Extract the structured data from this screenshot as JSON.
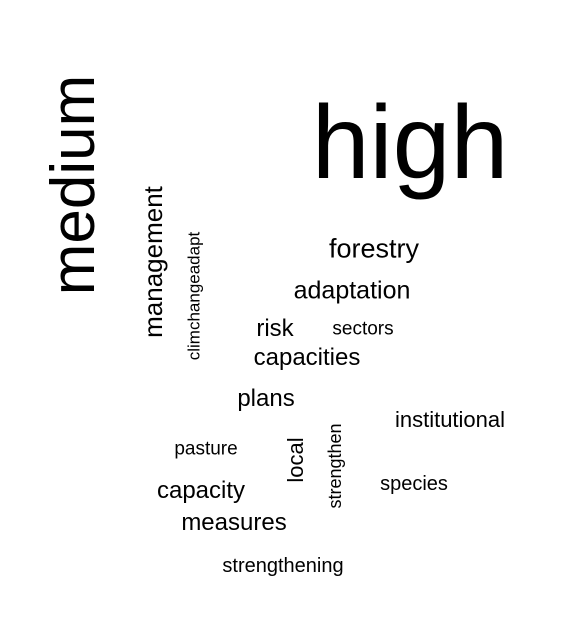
{
  "word_cloud": {
    "words": [
      {
        "text": "high",
        "orientation": "horizontal"
      },
      {
        "text": "medium",
        "orientation": "vertical"
      },
      {
        "text": "management",
        "orientation": "vertical"
      },
      {
        "text": "climchangeadapt",
        "orientation": "vertical"
      },
      {
        "text": "forestry",
        "orientation": "horizontal"
      },
      {
        "text": "adaptation",
        "orientation": "horizontal"
      },
      {
        "text": "risk",
        "orientation": "horizontal"
      },
      {
        "text": "sectors",
        "orientation": "horizontal"
      },
      {
        "text": "capacities",
        "orientation": "horizontal"
      },
      {
        "text": "plans",
        "orientation": "horizontal"
      },
      {
        "text": "institutional",
        "orientation": "horizontal"
      },
      {
        "text": "pasture",
        "orientation": "horizontal"
      },
      {
        "text": "local",
        "orientation": "vertical"
      },
      {
        "text": "strengthen",
        "orientation": "vertical"
      },
      {
        "text": "species",
        "orientation": "horizontal"
      },
      {
        "text": "capacity",
        "orientation": "horizontal"
      },
      {
        "text": "measures",
        "orientation": "horizontal"
      },
      {
        "text": "strengthening",
        "orientation": "horizontal"
      }
    ],
    "text_color": "#000000",
    "background_color": "#ffffff"
  }
}
